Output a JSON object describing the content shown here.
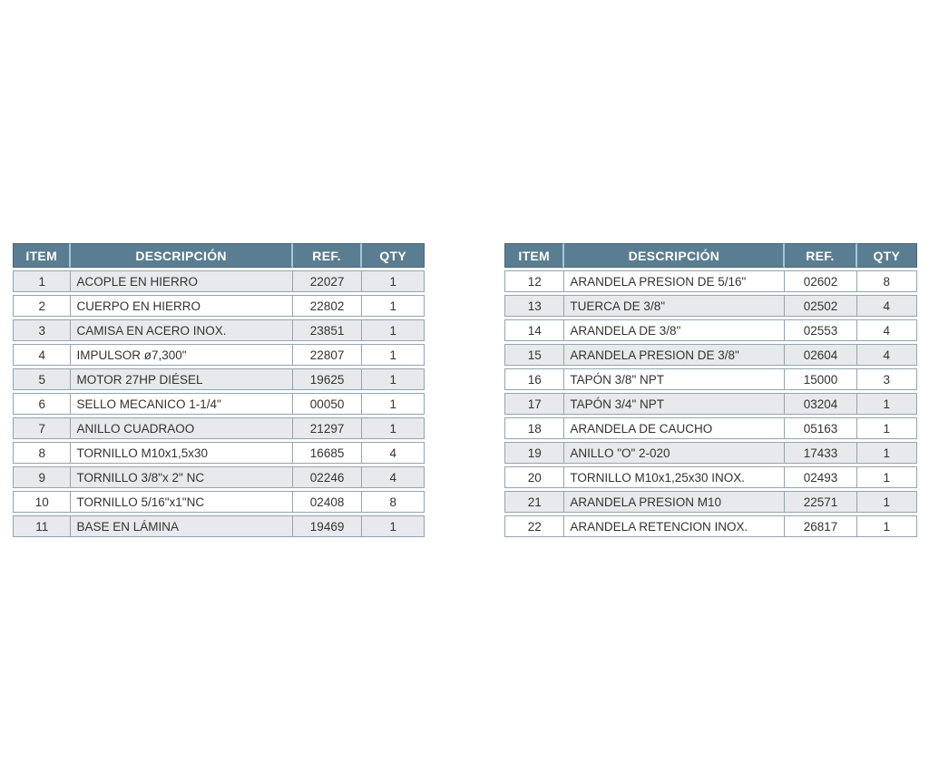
{
  "colors": {
    "header_bg": "#5b7d91",
    "header_text": "#ffffff",
    "header_divider": "#a6c7da",
    "header_border": "#4a6678",
    "cell_border": "#93a4af",
    "row_alt_bg": "#e7e9ec",
    "row_bg": "#ffffff",
    "body_text": "#333333",
    "page_bg": "#ffffff"
  },
  "tables": [
    {
      "id": "left",
      "columns": [
        "ITEM",
        "DESCRIPCIÓN",
        "REF.",
        "QTY"
      ],
      "rows": [
        [
          "1",
          "ACOPLE EN HIERRO",
          "22027",
          "1"
        ],
        [
          "2",
          "CUERPO EN HIERRO",
          "22802",
          "1"
        ],
        [
          "3",
          "CAMISA EN ACERO INOX.",
          "23851",
          "1"
        ],
        [
          "4",
          "IMPULSOR ø7,300\"",
          "22807",
          "1"
        ],
        [
          "5",
          "MOTOR 27HP DIÉSEL",
          "19625",
          "1"
        ],
        [
          "6",
          "SELLO MECANICO 1-1/4\"",
          "00050",
          "1"
        ],
        [
          "7",
          "ANILLO CUADRAOO",
          "21297",
          "1"
        ],
        [
          "8",
          "TORNILLO M10x1,5x30",
          "16685",
          "4"
        ],
        [
          "9",
          "TORNILLO 3/8\"x 2\" NC",
          "02246",
          "4"
        ],
        [
          "10",
          "TORNILLO 5/16\"x1\"NC",
          "02408",
          "8"
        ],
        [
          "11",
          "BASE EN LÁMINA",
          "19469",
          "1"
        ]
      ]
    },
    {
      "id": "right",
      "columns": [
        "ITEM",
        "DESCRIPCIÓN",
        "REF.",
        "QTY"
      ],
      "rows": [
        [
          "12",
          "ARANDELA PRESION DE 5/16\"",
          "02602",
          "8"
        ],
        [
          "13",
          "TUERCA DE 3/8\"",
          "02502",
          "4"
        ],
        [
          "14",
          "ARANDELA DE 3/8\"",
          "02553",
          "4"
        ],
        [
          "15",
          "ARANDELA PRESION DE 3/8\"",
          "02604",
          "4"
        ],
        [
          "16",
          "TAPÓN 3/8\" NPT",
          "15000",
          "3"
        ],
        [
          "17",
          "TAPÓN 3/4\" NPT",
          "03204",
          "1"
        ],
        [
          "18",
          "ARANDELA DE CAUCHO",
          "05163",
          "1"
        ],
        [
          "19",
          "ANILLO \"O\" 2-020",
          "17433",
          "1"
        ],
        [
          "20",
          "TORNILLO M10x1,25x30 INOX.",
          "02493",
          "1"
        ],
        [
          "21",
          "ARANDELA PRESION M10",
          "22571",
          "1"
        ],
        [
          "22",
          "ARANDELA RETENCION INOX.",
          "26817",
          "1"
        ]
      ]
    }
  ]
}
